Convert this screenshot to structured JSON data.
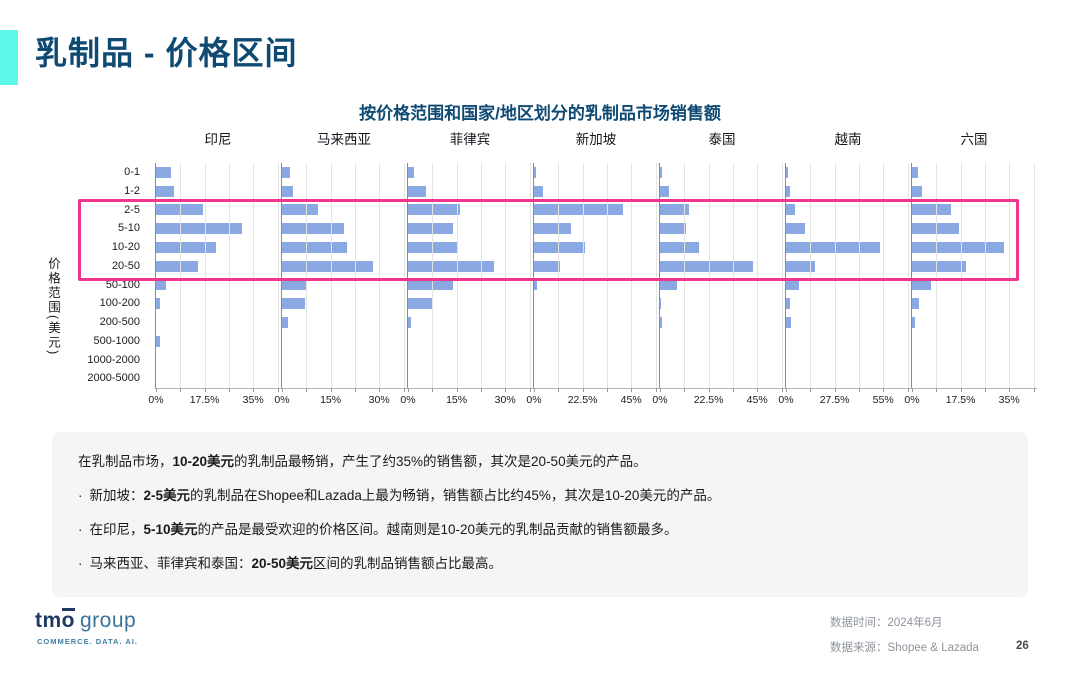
{
  "page": {
    "title": "乳制品 - 价格区间",
    "page_number": "26",
    "accent_color": "#5EF6EA",
    "title_color": "#0F4A73"
  },
  "footer": {
    "data_time": "数据时间：2024年6月",
    "data_source": "数据来源：Shopee & Lazada",
    "logo_tm": "tm",
    "logo_o": "o",
    "logo_group": "group",
    "logo_tagline": "COMMERCE. DATA. AI."
  },
  "chart_data": {
    "type": "bar",
    "orientation": "horizontal",
    "title": "按价格范围和国家/地区划分的乳制品市场销售额",
    "ylabel": "价格范围(美元)",
    "unit": "%",
    "bar_color": "#8AA9E3",
    "grid": true,
    "categories": [
      "0-1",
      "1-2",
      "2-5",
      "5-10",
      "10-20",
      "20-50",
      "50-100",
      "100-200",
      "200-500",
      "500-1000",
      "1000-2000",
      "2000-5000"
    ],
    "highlight_rows": [
      "2-5",
      "5-10",
      "10-20",
      "20-50"
    ],
    "highlight_color": "#F0368C",
    "series": [
      {
        "name": "印尼",
        "axis_max": 35,
        "ticks": [
          "0%",
          "17.5%",
          "35%"
        ],
        "values": [
          5.5,
          6.5,
          17,
          31,
          21.5,
          15,
          3.5,
          1.5,
          0,
          1.5,
          0,
          0
        ]
      },
      {
        "name": "马来西亚",
        "axis_max": 30,
        "ticks": [
          "0%",
          "15%",
          "30%"
        ],
        "values": [
          2.5,
          3.5,
          11,
          19,
          20,
          28,
          7.5,
          7,
          2,
          0,
          0,
          0
        ]
      },
      {
        "name": "菲律宾",
        "axis_max": 30,
        "ticks": [
          "0%",
          "15%",
          "30%"
        ],
        "values": [
          2,
          5.5,
          16,
          14,
          15.5,
          26.5,
          14,
          7.5,
          1,
          0,
          0,
          0
        ]
      },
      {
        "name": "新加坡",
        "axis_max": 45,
        "ticks": [
          "0%",
          "22.5%",
          "45%"
        ],
        "values": [
          1,
          4,
          41,
          17,
          23.5,
          12,
          1.5,
          0,
          0,
          0,
          0,
          0
        ]
      },
      {
        "name": "泰国",
        "axis_max": 45,
        "ticks": [
          "0%",
          "22.5%",
          "45%"
        ],
        "values": [
          1,
          4,
          13.5,
          12,
          18,
          43,
          8,
          0.5,
          1,
          0,
          0,
          0
        ]
      },
      {
        "name": "越南",
        "axis_max": 55,
        "ticks": [
          "0%",
          "27.5%",
          "55%"
        ],
        "values": [
          1,
          2,
          5,
          11,
          53,
          16.5,
          7.5,
          2,
          3,
          0,
          0,
          0
        ]
      },
      {
        "name": "六国",
        "axis_max": 35,
        "ticks": [
          "0%",
          "17.5%",
          "35%"
        ],
        "values": [
          2,
          3.5,
          14,
          17,
          33,
          19.5,
          7,
          2.5,
          1,
          0,
          0,
          0
        ]
      }
    ]
  },
  "insights": {
    "bullet_char": "·",
    "lines": [
      {
        "bullet": false,
        "segments": [
          {
            "t": "在乳制品市场，",
            "b": false
          },
          {
            "t": "10-20美元",
            "b": true
          },
          {
            "t": "的乳制品最畅销，产生了约35%的销售额，其次是20-50美元的产品。",
            "b": false
          }
        ]
      },
      {
        "bullet": true,
        "segments": [
          {
            "t": "新加坡：",
            "b": false
          },
          {
            "t": "2-5美元",
            "b": true
          },
          {
            "t": "的乳制品在Shopee和Lazada上最为畅销，销售额占比约45%，其次是10-20美元的产品。",
            "b": false
          }
        ]
      },
      {
        "bullet": true,
        "segments": [
          {
            "t": "在印尼，",
            "b": false
          },
          {
            "t": "5-10美元",
            "b": true
          },
          {
            "t": "的产品是最受欢迎的价格区间。越南则是10-20美元的乳制品贡献的销售额最多。",
            "b": false
          }
        ]
      },
      {
        "bullet": true,
        "segments": [
          {
            "t": "马来西亚、菲律宾和泰国：",
            "b": false
          },
          {
            "t": "20-50美元",
            "b": true
          },
          {
            "t": "区间的乳制品销售额占比最高。",
            "b": false
          }
        ]
      }
    ]
  }
}
